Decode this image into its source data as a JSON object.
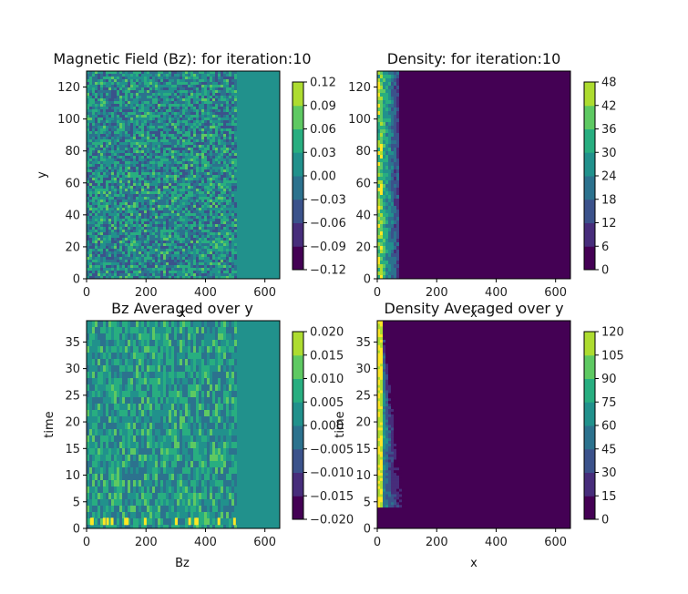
{
  "chart_data": [
    {
      "type": "heatmap",
      "title": "Magnetic Field (Bz): for iteration:10",
      "xlabel": "x",
      "ylabel": "y",
      "x_ticks": [
        "0",
        "200",
        "400",
        "600"
      ],
      "y_ticks": [
        "0",
        "20",
        "40",
        "60",
        "80",
        "100",
        "120"
      ],
      "xlim": [
        0,
        650
      ],
      "ylim": [
        0,
        130
      ],
      "colorbar": {
        "range": [
          -0.12,
          0.12
        ],
        "ticks": [
          "−0.12",
          "−0.09",
          "−0.06",
          "−0.03",
          "0.00",
          "0.03",
          "0.06",
          "0.09",
          "0.12"
        ]
      },
      "pattern": {
        "kind": "noise",
        "edge_x": 505,
        "background_level": 0.47,
        "spread": 0.22
      }
    },
    {
      "type": "heatmap",
      "title": "Density: for iteration:10",
      "xlabel": "x",
      "ylabel": "",
      "x_ticks": [
        "0",
        "200",
        "400",
        "600"
      ],
      "y_ticks": [
        "0",
        "20",
        "40",
        "60",
        "80",
        "100",
        "120"
      ],
      "xlim": [
        0,
        650
      ],
      "ylim": [
        0,
        130
      ],
      "colorbar": {
        "range": [
          0,
          48
        ],
        "ticks": [
          "0",
          "6",
          "12",
          "18",
          "24",
          "30",
          "36",
          "42",
          "48"
        ]
      },
      "pattern": {
        "kind": "left-band",
        "band_width": 70,
        "background_level": 0.0
      }
    },
    {
      "type": "heatmap",
      "title": "Bz Averaged over y",
      "xlabel": "Bz",
      "ylabel": "time",
      "x_ticks": [
        "0",
        "200",
        "400",
        "600"
      ],
      "y_ticks": [
        "0",
        "5",
        "10",
        "15",
        "20",
        "25",
        "30",
        "35"
      ],
      "xlim": [
        0,
        650
      ],
      "ylim": [
        0,
        39
      ],
      "colorbar": {
        "range": [
          -0.02,
          0.02
        ],
        "ticks": [
          "−0.020",
          "−0.015",
          "−0.010",
          "−0.005",
          "0.000",
          "0.005",
          "0.010",
          "0.015",
          "0.020"
        ]
      },
      "pattern": {
        "kind": "streaks",
        "edge_x": 505,
        "background_level": 0.52,
        "spread": 0.18
      }
    },
    {
      "type": "heatmap",
      "title": "Density Averaged over y",
      "xlabel": "x",
      "ylabel": "time",
      "x_ticks": [
        "0",
        "200",
        "400",
        "600"
      ],
      "y_ticks": [
        "0",
        "5",
        "10",
        "15",
        "20",
        "25",
        "30",
        "35"
      ],
      "xlim": [
        0,
        650
      ],
      "ylim": [
        0,
        39
      ],
      "colorbar": {
        "range": [
          0,
          120
        ],
        "ticks": [
          "0",
          "15",
          "30",
          "45",
          "60",
          "75",
          "90",
          "105",
          "120"
        ]
      },
      "pattern": {
        "kind": "spreading-front",
        "background_level": 0.0
      }
    }
  ]
}
